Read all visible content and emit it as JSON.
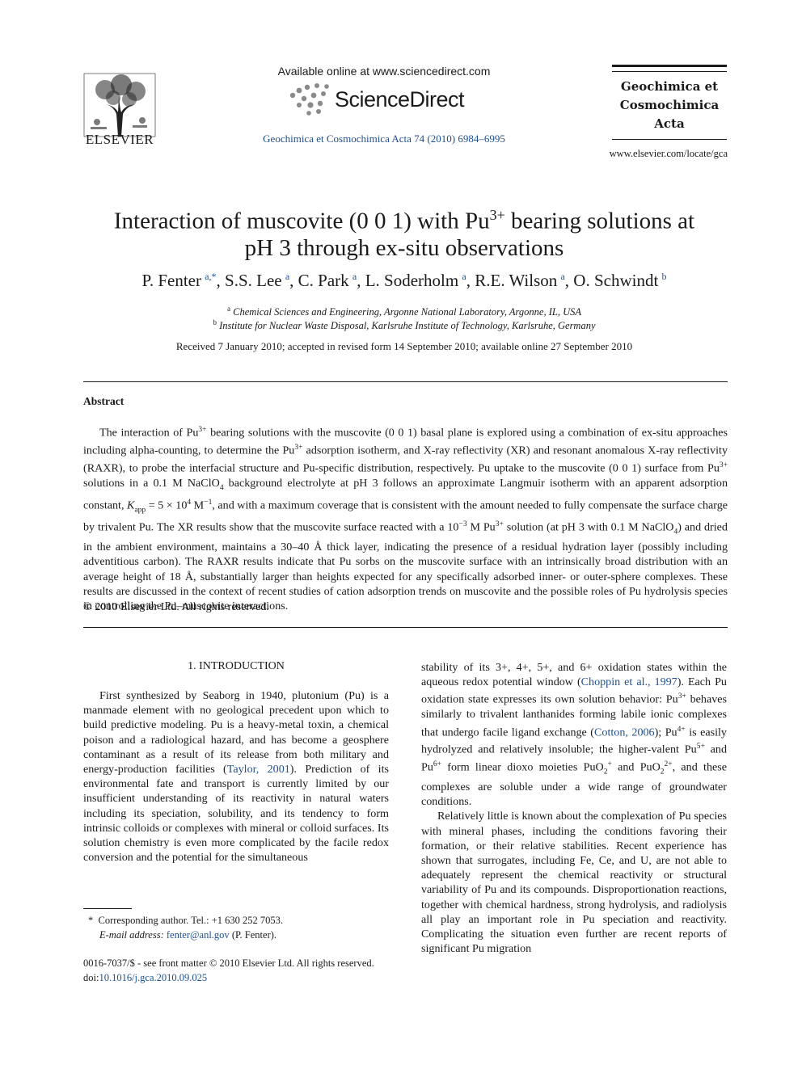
{
  "header": {
    "publisher_logo_text": "ELSEVIER",
    "available_online": "Available online at www.sciencedirect.com",
    "platform_name": "ScienceDirect",
    "journal_ref": "Geochimica et Cosmochimica Acta 74 (2010) 6984–6995",
    "journal_name_lines": [
      "Geochimica et",
      "Cosmochimica",
      "Acta"
    ],
    "journal_url": "www.elsevier.com/locate/gca"
  },
  "article": {
    "title_part1": "Interaction of muscovite (0 0 1) with Pu",
    "title_sup": "3+",
    "title_part2": " bearing solutions at",
    "title_line2": "pH 3 through ex-situ observations",
    "authors": [
      {
        "name": "P. Fenter",
        "aff": "a,*"
      },
      {
        "name": "S.S. Lee",
        "aff": "a"
      },
      {
        "name": "C. Park",
        "aff": "a"
      },
      {
        "name": "L. Soderholm",
        "aff": "a"
      },
      {
        "name": "R.E. Wilson",
        "aff": "a"
      },
      {
        "name": "O. Schwindt",
        "aff": "b"
      }
    ],
    "affiliations": [
      {
        "mark": "a",
        "text": "Chemical Sciences and Engineering, Argonne National Laboratory, Argonne, IL, USA"
      },
      {
        "mark": "b",
        "text": "Institute for Nuclear Waste Disposal, Karlsruhe Institute of Technology, Karlsruhe, Germany"
      }
    ],
    "received": "Received 7 January 2010; accepted in revised form 14 September 2010; available online 27 September 2010"
  },
  "abstract": {
    "heading": "Abstract",
    "segments": [
      {
        "t": "The interaction of Pu"
      },
      {
        "sup": "3+"
      },
      {
        "t": " bearing solutions with the muscovite (0 0 1) basal plane is explored using a combination of ex-situ approaches including alpha-counting, to determine the Pu"
      },
      {
        "sup": "3+"
      },
      {
        "t": " adsorption isotherm, and X-ray reflectivity (XR) and resonant anomalous X-ray reflectivity (RAXR), to probe the interfacial structure and Pu-specific distribution, respectively. Pu uptake to the muscovite (0 0 1) surface from Pu"
      },
      {
        "sup": "3+"
      },
      {
        "t": " solutions in a 0.1 M NaClO"
      },
      {
        "sub": "4"
      },
      {
        "t": " background electrolyte at pH 3 follows an approximate Langmuir isotherm with an apparent adsorption constant, "
      },
      {
        "i": "K"
      },
      {
        "sub": "app"
      },
      {
        "t": " = 5 × 10"
      },
      {
        "sup": "4"
      },
      {
        "t": " M"
      },
      {
        "sup": "−1"
      },
      {
        "t": ", and with a maximum coverage that is consistent with the amount needed to fully compensate the surface charge by trivalent Pu. The XR results show that the muscovite surface reacted with a 10"
      },
      {
        "sup": "−3"
      },
      {
        "t": " M Pu"
      },
      {
        "sup": "3+"
      },
      {
        "t": " solution (at pH 3 with 0.1 M NaClO"
      },
      {
        "sub": "4"
      },
      {
        "t": ") and dried in the ambient environment, maintains a 30–40 Å thick layer, indicating the presence of a residual hydration layer (possibly including adventitious carbon). The RAXR results indicate that Pu sorbs on the muscovite surface with an intrinsically broad distribution with an average height of 18 Å, substantially larger than heights expected for any specifically adsorbed inner- or outer-sphere complexes. These results are discussed in the context of recent studies of cation adsorption trends on muscovite and the possible roles of Pu hydrolysis species in controlling the Pu–muscovite interactions."
      }
    ],
    "copyright": "© 2010 Elsevier Ltd. All rights reserved."
  },
  "body": {
    "section_heading": "1. INTRODUCTION",
    "left_paragraph": [
      {
        "t": "First synthesized by Seaborg in 1940, plutonium (Pu) is a manmade element with no geological precedent upon which to build predictive modeling. Pu is a heavy-metal toxin, a chemical poison and a radiological hazard, and has become a geosphere contaminant as a result of its release from both military and energy-production facilities ("
      },
      {
        "link": "Taylor, 2001"
      },
      {
        "t": "). Prediction of its environmental fate and transport is currently limited by our insufficient understanding of its reactivity in natural waters including its speciation, solubility, and its tendency to form intrinsic colloids or complexes with mineral or colloid surfaces. Its solution chemistry is even more complicated by the facile redox conversion and the potential for the simultaneous"
      }
    ],
    "right_paragraph1": [
      {
        "t": "stability of its 3+, 4+, 5+, and 6+ oxidation states within the aqueous redox potential window ("
      },
      {
        "link": "Choppin et al., 1997"
      },
      {
        "t": "). Each Pu oxidation state expresses its own solution behavior: Pu"
      },
      {
        "sup": "3+"
      },
      {
        "t": " behaves similarly to trivalent lanthanides forming labile ionic complexes that undergo facile ligand exchange ("
      },
      {
        "link": "Cotton, 2006"
      },
      {
        "t": "); Pu"
      },
      {
        "sup": "4+"
      },
      {
        "t": " is easily hydrolyzed and relatively insoluble; the higher-valent Pu"
      },
      {
        "sup": "5+"
      },
      {
        "t": " and Pu"
      },
      {
        "sup": "6+"
      },
      {
        "t": " form linear dioxo moieties PuO"
      },
      {
        "sub": "2"
      },
      {
        "sup": "+"
      },
      {
        "t": " and PuO"
      },
      {
        "sub": "2"
      },
      {
        "sup": "2+"
      },
      {
        "t": ", and these complexes are soluble under a wide range of groundwater conditions."
      }
    ],
    "right_paragraph2": [
      {
        "t": "Relatively little is known about the complexation of Pu species with mineral phases, including the conditions favoring their formation, or their relative stabilities. Recent experience has shown that surrogates, including Fe, Ce, and U, are not able to adequately represent the chemical reactivity or structural variability of Pu and its compounds. Disproportionation reactions, together with chemical hardness, strong hydrolysis, and radiolysis all play an important role in Pu speciation and reactivity. Complicating the situation even further are recent reports of significant Pu migration"
      }
    ]
  },
  "footnote": {
    "mark": "*",
    "corresponding": "Corresponding author. Tel.: +1 630 252 7053.",
    "email_label": "E-mail address:",
    "email": "fenter@anl.gov",
    "email_suffix": "(P. Fenter)."
  },
  "front_matter": {
    "issn_line": "0016-7037/$ - see front matter © 2010 Elsevier Ltd. All rights reserved.",
    "doi_label": "doi:",
    "doi": "10.1016/j.gca.2010.09.025"
  },
  "colors": {
    "link": "#1f4f8f",
    "text": "#1a1a1a"
  },
  "icons": [
    "elsevier-tree-logo",
    "sciencedirect-dots-logo"
  ]
}
